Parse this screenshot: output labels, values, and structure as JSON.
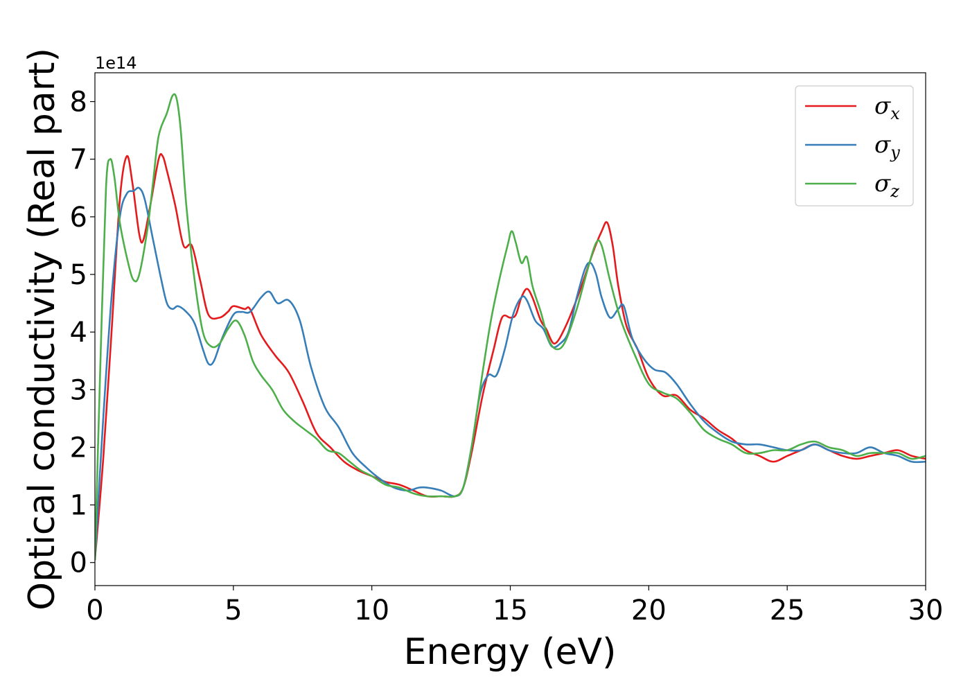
{
  "chart_data": {
    "type": "line",
    "xlabel": "Energy (eV)",
    "ylabel": "Optical conductivity (Real part)",
    "y_offset_text": "1e14",
    "xlim": [
      0,
      30
    ],
    "ylim": [
      -0.4,
      8.5
    ],
    "x_ticks": [
      0,
      5,
      10,
      15,
      20,
      25,
      30
    ],
    "y_ticks": [
      0,
      1,
      2,
      3,
      4,
      5,
      6,
      7,
      8
    ],
    "grid": false,
    "legend_position": "top-right",
    "series": [
      {
        "name": "σx",
        "symbol": "σ",
        "subscript": "x",
        "color": "#e41a1c",
        "points": [
          [
            0,
            0.05
          ],
          [
            0.3,
            1.8
          ],
          [
            0.6,
            4.0
          ],
          [
            0.9,
            6.3
          ],
          [
            1.15,
            7.05
          ],
          [
            1.35,
            6.6
          ],
          [
            1.6,
            5.7
          ],
          [
            1.75,
            5.6
          ],
          [
            2.0,
            6.2
          ],
          [
            2.3,
            7.0
          ],
          [
            2.45,
            7.05
          ],
          [
            2.6,
            6.8
          ],
          [
            2.9,
            6.2
          ],
          [
            3.2,
            5.5
          ],
          [
            3.5,
            5.5
          ],
          [
            3.8,
            4.9
          ],
          [
            4.1,
            4.3
          ],
          [
            4.5,
            4.25
          ],
          [
            4.8,
            4.35
          ],
          [
            5.0,
            4.45
          ],
          [
            5.4,
            4.4
          ],
          [
            5.6,
            4.4
          ],
          [
            6.0,
            3.95
          ],
          [
            6.5,
            3.6
          ],
          [
            7.0,
            3.3
          ],
          [
            7.5,
            2.8
          ],
          [
            8.0,
            2.25
          ],
          [
            8.5,
            2.0
          ],
          [
            9.0,
            1.75
          ],
          [
            9.5,
            1.6
          ],
          [
            10.0,
            1.5
          ],
          [
            10.5,
            1.4
          ],
          [
            11.0,
            1.35
          ],
          [
            11.5,
            1.25
          ],
          [
            12.0,
            1.15
          ],
          [
            12.5,
            1.15
          ],
          [
            13.0,
            1.15
          ],
          [
            13.3,
            1.3
          ],
          [
            13.6,
            1.9
          ],
          [
            14.0,
            2.9
          ],
          [
            14.4,
            3.7
          ],
          [
            14.7,
            4.25
          ],
          [
            15.0,
            4.25
          ],
          [
            15.2,
            4.3
          ],
          [
            15.4,
            4.6
          ],
          [
            15.6,
            4.75
          ],
          [
            15.8,
            4.6
          ],
          [
            16.1,
            4.2
          ],
          [
            16.3,
            4.05
          ],
          [
            16.6,
            3.8
          ],
          [
            17.0,
            4.1
          ],
          [
            17.5,
            4.7
          ],
          [
            18.0,
            5.4
          ],
          [
            18.3,
            5.75
          ],
          [
            18.5,
            5.9
          ],
          [
            18.7,
            5.5
          ],
          [
            18.9,
            4.8
          ],
          [
            19.2,
            4.1
          ],
          [
            19.6,
            3.7
          ],
          [
            20.0,
            3.2
          ],
          [
            20.5,
            2.9
          ],
          [
            21.0,
            2.9
          ],
          [
            21.5,
            2.65
          ],
          [
            22.0,
            2.5
          ],
          [
            22.5,
            2.3
          ],
          [
            23.0,
            2.15
          ],
          [
            23.5,
            1.95
          ],
          [
            24.0,
            1.85
          ],
          [
            24.5,
            1.75
          ],
          [
            25.0,
            1.85
          ],
          [
            25.5,
            1.95
          ],
          [
            26.0,
            2.05
          ],
          [
            26.5,
            1.95
          ],
          [
            27.0,
            1.85
          ],
          [
            27.5,
            1.8
          ],
          [
            28.0,
            1.85
          ],
          [
            28.5,
            1.9
          ],
          [
            29.0,
            1.95
          ],
          [
            29.5,
            1.85
          ],
          [
            30.0,
            1.8
          ]
        ]
      },
      {
        "name": "σy",
        "symbol": "σ",
        "subscript": "y",
        "color": "#377eb8",
        "points": [
          [
            0,
            0.05
          ],
          [
            0.3,
            2.5
          ],
          [
            0.6,
            4.6
          ],
          [
            0.9,
            6.0
          ],
          [
            1.15,
            6.4
          ],
          [
            1.4,
            6.45
          ],
          [
            1.6,
            6.5
          ],
          [
            1.8,
            6.3
          ],
          [
            2.1,
            5.6
          ],
          [
            2.4,
            4.9
          ],
          [
            2.6,
            4.5
          ],
          [
            2.8,
            4.4
          ],
          [
            3.0,
            4.45
          ],
          [
            3.3,
            4.35
          ],
          [
            3.6,
            4.15
          ],
          [
            3.9,
            3.7
          ],
          [
            4.1,
            3.45
          ],
          [
            4.3,
            3.5
          ],
          [
            4.6,
            3.9
          ],
          [
            5.0,
            4.3
          ],
          [
            5.3,
            4.35
          ],
          [
            5.6,
            4.35
          ],
          [
            6.0,
            4.6
          ],
          [
            6.3,
            4.7
          ],
          [
            6.6,
            4.5
          ],
          [
            7.0,
            4.55
          ],
          [
            7.4,
            4.2
          ],
          [
            7.8,
            3.4
          ],
          [
            8.3,
            2.7
          ],
          [
            8.8,
            2.35
          ],
          [
            9.3,
            1.9
          ],
          [
            9.8,
            1.65
          ],
          [
            10.3,
            1.45
          ],
          [
            10.8,
            1.3
          ],
          [
            11.3,
            1.25
          ],
          [
            11.7,
            1.3
          ],
          [
            12.0,
            1.3
          ],
          [
            12.5,
            1.25
          ],
          [
            13.0,
            1.15
          ],
          [
            13.3,
            1.3
          ],
          [
            13.6,
            2.0
          ],
          [
            13.9,
            2.9
          ],
          [
            14.2,
            3.25
          ],
          [
            14.5,
            3.25
          ],
          [
            14.8,
            3.7
          ],
          [
            15.1,
            4.3
          ],
          [
            15.4,
            4.6
          ],
          [
            15.6,
            4.55
          ],
          [
            15.9,
            4.2
          ],
          [
            16.2,
            4.05
          ],
          [
            16.5,
            3.75
          ],
          [
            16.8,
            3.8
          ],
          [
            17.1,
            4.0
          ],
          [
            17.4,
            4.6
          ],
          [
            17.7,
            5.1
          ],
          [
            17.9,
            5.2
          ],
          [
            18.1,
            5.0
          ],
          [
            18.3,
            4.6
          ],
          [
            18.6,
            4.25
          ],
          [
            18.9,
            4.4
          ],
          [
            19.1,
            4.45
          ],
          [
            19.4,
            3.9
          ],
          [
            19.8,
            3.55
          ],
          [
            20.2,
            3.35
          ],
          [
            20.6,
            3.3
          ],
          [
            21.0,
            3.1
          ],
          [
            21.5,
            2.75
          ],
          [
            22.0,
            2.45
          ],
          [
            22.5,
            2.25
          ],
          [
            23.0,
            2.1
          ],
          [
            23.5,
            2.05
          ],
          [
            24.0,
            2.05
          ],
          [
            24.5,
            2.0
          ],
          [
            25.0,
            1.95
          ],
          [
            25.5,
            1.95
          ],
          [
            26.0,
            2.05
          ],
          [
            26.5,
            1.95
          ],
          [
            27.0,
            1.9
          ],
          [
            27.5,
            1.9
          ],
          [
            28.0,
            2.0
          ],
          [
            28.5,
            1.9
          ],
          [
            29.0,
            1.85
          ],
          [
            29.5,
            1.75
          ],
          [
            30.0,
            1.75
          ]
        ]
      },
      {
        "name": "σz",
        "symbol": "σ",
        "subscript": "z",
        "color": "#4daf4a",
        "points": [
          [
            0,
            0.05
          ],
          [
            0.2,
            3.5
          ],
          [
            0.4,
            6.5
          ],
          [
            0.55,
            7.0
          ],
          [
            0.7,
            6.7
          ],
          [
            0.9,
            5.9
          ],
          [
            1.2,
            5.2
          ],
          [
            1.4,
            4.9
          ],
          [
            1.6,
            5.0
          ],
          [
            1.9,
            5.8
          ],
          [
            2.1,
            6.6
          ],
          [
            2.3,
            7.4
          ],
          [
            2.6,
            7.8
          ],
          [
            2.8,
            8.1
          ],
          [
            2.95,
            8.05
          ],
          [
            3.1,
            7.5
          ],
          [
            3.3,
            6.2
          ],
          [
            3.6,
            4.9
          ],
          [
            3.9,
            4.0
          ],
          [
            4.2,
            3.75
          ],
          [
            4.5,
            3.8
          ],
          [
            4.8,
            4.05
          ],
          [
            5.1,
            4.2
          ],
          [
            5.4,
            3.95
          ],
          [
            5.7,
            3.5
          ],
          [
            6.0,
            3.25
          ],
          [
            6.4,
            3.0
          ],
          [
            6.8,
            2.65
          ],
          [
            7.2,
            2.45
          ],
          [
            7.6,
            2.3
          ],
          [
            8.0,
            2.15
          ],
          [
            8.4,
            1.95
          ],
          [
            8.8,
            1.9
          ],
          [
            9.2,
            1.75
          ],
          [
            9.6,
            1.6
          ],
          [
            10.0,
            1.5
          ],
          [
            10.5,
            1.35
          ],
          [
            11.0,
            1.3
          ],
          [
            11.5,
            1.2
          ],
          [
            12.0,
            1.15
          ],
          [
            12.5,
            1.15
          ],
          [
            13.0,
            1.15
          ],
          [
            13.3,
            1.3
          ],
          [
            13.6,
            2.0
          ],
          [
            14.0,
            3.3
          ],
          [
            14.3,
            4.2
          ],
          [
            14.6,
            4.9
          ],
          [
            14.9,
            5.5
          ],
          [
            15.05,
            5.75
          ],
          [
            15.2,
            5.55
          ],
          [
            15.4,
            5.2
          ],
          [
            15.6,
            5.3
          ],
          [
            15.8,
            4.8
          ],
          [
            16.1,
            4.35
          ],
          [
            16.4,
            3.85
          ],
          [
            16.7,
            3.7
          ],
          [
            17.0,
            3.85
          ],
          [
            17.4,
            4.4
          ],
          [
            17.8,
            5.1
          ],
          [
            18.1,
            5.55
          ],
          [
            18.3,
            5.5
          ],
          [
            18.6,
            4.9
          ],
          [
            19.0,
            4.2
          ],
          [
            19.5,
            3.6
          ],
          [
            20.0,
            3.1
          ],
          [
            20.5,
            2.95
          ],
          [
            21.0,
            2.85
          ],
          [
            21.5,
            2.6
          ],
          [
            22.0,
            2.3
          ],
          [
            22.5,
            2.15
          ],
          [
            23.0,
            2.05
          ],
          [
            23.5,
            1.9
          ],
          [
            24.0,
            1.9
          ],
          [
            24.5,
            1.95
          ],
          [
            25.0,
            1.95
          ],
          [
            25.5,
            2.05
          ],
          [
            26.0,
            2.1
          ],
          [
            26.5,
            2.0
          ],
          [
            27.0,
            1.95
          ],
          [
            27.5,
            1.85
          ],
          [
            28.0,
            1.9
          ],
          [
            28.5,
            1.9
          ],
          [
            29.0,
            1.9
          ],
          [
            29.5,
            1.8
          ],
          [
            30.0,
            1.85
          ]
        ]
      }
    ]
  }
}
